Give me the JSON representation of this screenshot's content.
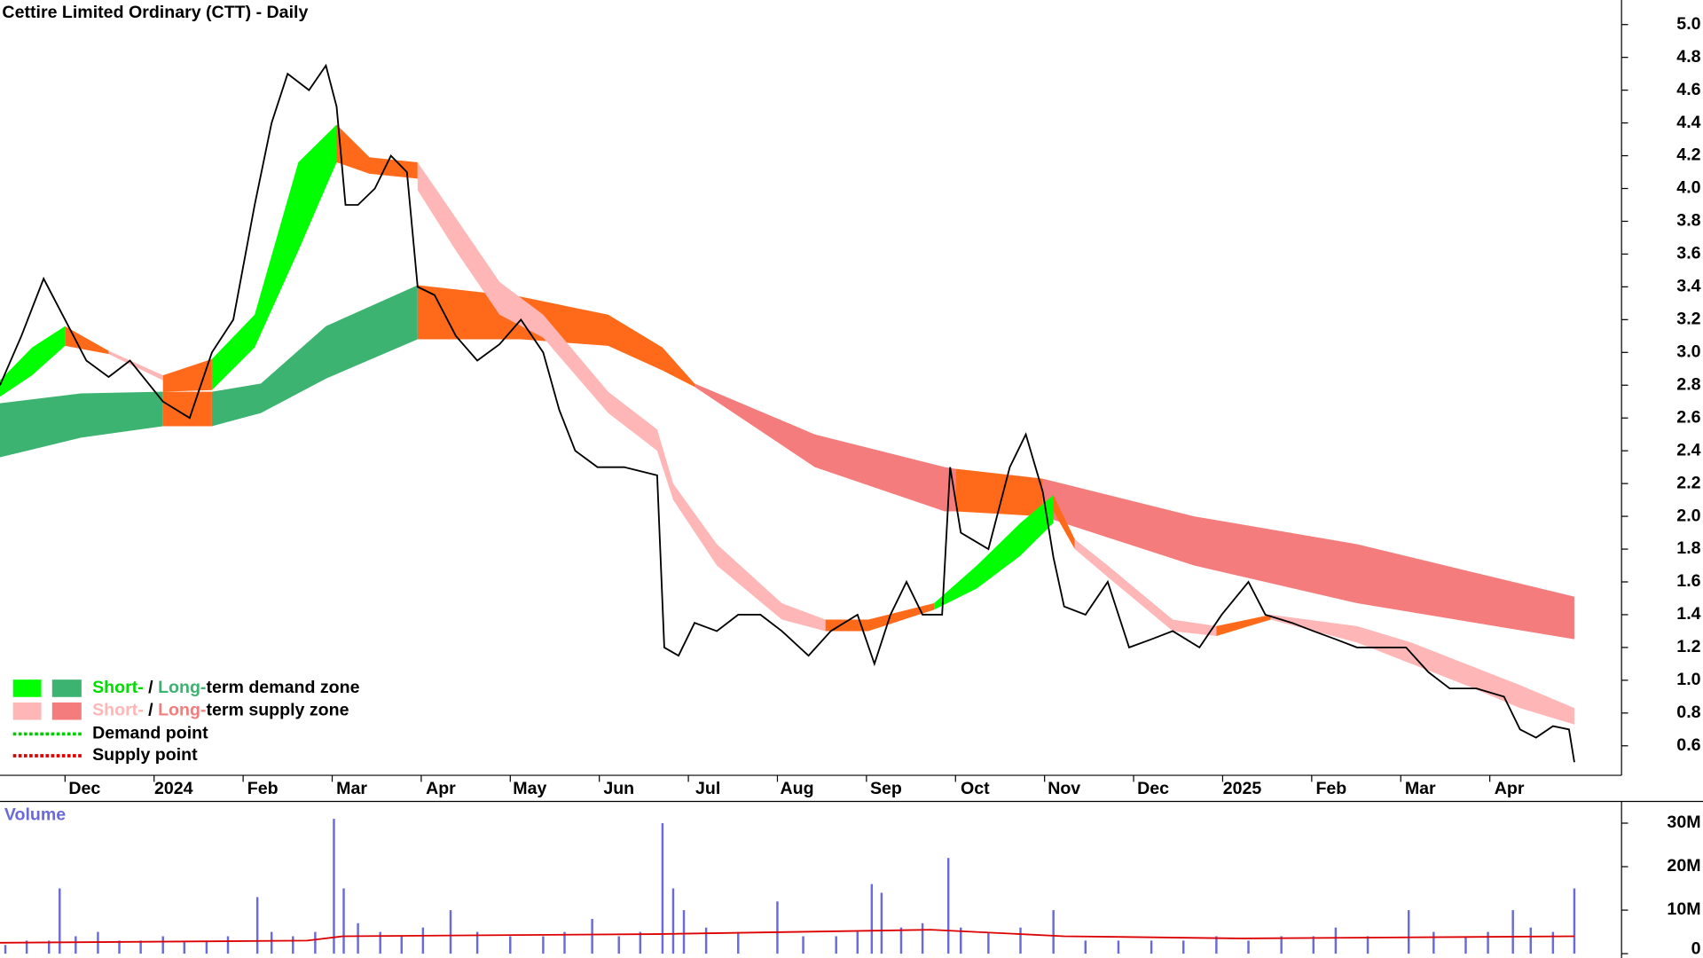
{
  "chart_data": [
    {
      "type": "line",
      "title": "Cettire Limited Ordinary (CTT) - Daily",
      "xlim": [
        0.05,
        18.26
      ],
      "ylim": [
        0.42,
        5.15
      ],
      "xticks": [
        {
          "value": 1,
          "label": "Dec"
        },
        {
          "value": 2,
          "label": "2024"
        },
        {
          "value": 3,
          "label": "Feb"
        },
        {
          "value": 4,
          "label": "Mar"
        },
        {
          "value": 5,
          "label": "Apr"
        },
        {
          "value": 6,
          "label": "May"
        },
        {
          "value": 7,
          "label": "Jun"
        },
        {
          "value": 8,
          "label": "Jul"
        },
        {
          "value": 9,
          "label": "Aug"
        },
        {
          "value": 10,
          "label": "Sep"
        },
        {
          "value": 11,
          "label": "Oct"
        },
        {
          "value": 12,
          "label": "Nov"
        },
        {
          "value": 13,
          "label": "Dec"
        },
        {
          "value": 14,
          "label": "2025"
        },
        {
          "value": 15,
          "label": "Feb"
        },
        {
          "value": 16,
          "label": "Mar"
        },
        {
          "value": 17,
          "label": "Apr"
        }
      ],
      "yticks": [
        0.6,
        0.8,
        {
          "value": 1,
          "label": "1.0"
        },
        1.2,
        1.4,
        1.6,
        1.8,
        {
          "value": 2,
          "label": "2.0"
        },
        2.2,
        2.4,
        2.6,
        2.8,
        {
          "value": 3,
          "label": "3.0"
        },
        3.2,
        3.4,
        3.6,
        3.8,
        {
          "value": 4,
          "label": "4.0"
        },
        4.2,
        4.4,
        4.6,
        4.8,
        {
          "value": 5,
          "label": "5.0"
        }
      ],
      "color": "#000000",
      "x": [
        0.05,
        0.29,
        0.54,
        0.78,
        1.02,
        1.27,
        1.51,
        1.88,
        2.18,
        2.43,
        2.67,
        2.91,
        3.1,
        3.28,
        3.52,
        3.71,
        3.83,
        3.93,
        4.07,
        4.26,
        4.44,
        4.62,
        4.74,
        4.93,
        5.17,
        5.41,
        5.66,
        5.9,
        6.15,
        6.33,
        6.51,
        6.76,
        7.06,
        7.43,
        7.51,
        7.67,
        7.85,
        8.1,
        8.34,
        8.59,
        8.83,
        9.13,
        9.38,
        9.68,
        9.87,
        10.05,
        10.23,
        10.41,
        10.63,
        10.72,
        10.84,
        11.15,
        11.39,
        11.57,
        11.76,
        11.88,
        12,
        12.24,
        12.49,
        12.73,
        12.98,
        13.22,
        13.52,
        13.77,
        14.07,
        14.26,
        14.56,
        14.8,
        15.05,
        15.29,
        15.54,
        15.84,
        16.09,
        16.33,
        16.63,
        16.94,
        17.12,
        17.3,
        17.49,
        17.67,
        17.73
      ],
      "values": [
        2.8,
        3.1,
        3.45,
        3.2,
        2.95,
        2.85,
        2.95,
        2.7,
        2.6,
        3.0,
        3.2,
        3.9,
        4.4,
        4.7,
        4.6,
        4.75,
        4.5,
        3.9,
        3.9,
        4.0,
        4.2,
        4.1,
        3.4,
        3.35,
        3.1,
        2.95,
        3.05,
        3.2,
        3.0,
        2.65,
        2.4,
        2.3,
        2.3,
        2.25,
        1.2,
        1.15,
        1.35,
        1.3,
        1.4,
        1.4,
        1.3,
        1.15,
        1.3,
        1.4,
        1.1,
        1.4,
        1.6,
        1.4,
        1.4,
        2.3,
        1.9,
        1.8,
        2.3,
        2.5,
        2.15,
        1.75,
        1.45,
        1.4,
        1.6,
        1.2,
        1.25,
        1.3,
        1.2,
        1.4,
        1.6,
        1.4,
        1.35,
        1.3,
        1.25,
        1.2,
        1.2,
        1.2,
        1.05,
        0.95,
        0.95,
        0.9,
        0.7,
        0.65,
        0.72,
        0.7,
        0.5
      ],
      "bands": [
        {
          "color": "#3cb371",
          "x": [
            0.05,
            0.96,
            1.88
          ],
          "upper": [
            2.69,
            2.75,
            2.76
          ],
          "lower": [
            2.36,
            2.48,
            2.55
          ]
        },
        {
          "color": "#ff6a1a",
          "x": [
            1.88,
            2.43
          ],
          "upper": [
            2.76,
            2.76
          ],
          "lower": [
            2.55,
            2.55
          ]
        },
        {
          "color": "#3cb371",
          "x": [
            2.43,
            2.98,
            3.71,
            4.74
          ],
          "upper": [
            2.76,
            2.81,
            3.16,
            3.41
          ],
          "lower": [
            2.55,
            2.63,
            2.84,
            3.08
          ]
        },
        {
          "color": "#ff6a1a",
          "x": [
            4.74,
            5.9,
            6.88,
            7.49,
            7.85
          ],
          "upper": [
            3.41,
            3.34,
            3.23,
            3.03,
            2.81
          ],
          "lower": [
            3.08,
            3.08,
            3.04,
            2.89,
            2.79
          ]
        },
        {
          "color": "#f47c7c",
          "x": [
            7.85,
            9.2,
            10.66,
            10.78
          ],
          "upper": [
            2.81,
            2.5,
            2.3,
            2.29
          ],
          "lower": [
            2.79,
            2.3,
            2.03,
            2.03
          ]
        },
        {
          "color": "#ff6a1a",
          "x": [
            10.78,
            11.76
          ],
          "upper": [
            2.29,
            2.23
          ],
          "lower": [
            2.03,
            2.0
          ]
        },
        {
          "color": "#f47c7c",
          "x": [
            11.76,
            13.46,
            15.29,
            17.73
          ],
          "upper": [
            2.23,
            2.0,
            1.83,
            1.51
          ],
          "lower": [
            2.0,
            1.7,
            1.47,
            1.25
          ]
        },
        {
          "color": "#00ff00",
          "x": [
            0.05,
            0.41,
            0.78
          ],
          "upper": [
            2.83,
            3.03,
            3.16
          ],
          "lower": [
            2.73,
            2.86,
            3.04
          ]
        },
        {
          "color": "#ff6a1a",
          "x": [
            0.78,
            1.27
          ],
          "upper": [
            3.16,
            3.01
          ],
          "lower": [
            3.04,
            2.99
          ]
        },
        {
          "color": "#ffb6b6",
          "x": [
            1.27,
            1.88
          ],
          "upper": [
            3.01,
            2.86
          ],
          "lower": [
            2.99,
            2.83
          ]
        },
        {
          "color": "#ff6a1a",
          "x": [
            1.88,
            2.43
          ],
          "upper": [
            2.86,
            2.96
          ],
          "lower": [
            2.76,
            2.77
          ]
        },
        {
          "color": "#00ff00",
          "x": [
            2.43,
            2.91,
            3.4,
            3.83
          ],
          "upper": [
            2.96,
            3.23,
            4.16,
            4.39
          ],
          "lower": [
            2.77,
            3.03,
            3.62,
            4.16
          ]
        },
        {
          "color": "#ff6a1a",
          "x": [
            3.83,
            4.2,
            4.74
          ],
          "upper": [
            4.39,
            4.19,
            4.16
          ],
          "lower": [
            4.16,
            4.09,
            4.06
          ]
        },
        {
          "color": "#ffb6b6",
          "x": [
            4.74,
            5.17,
            5.66,
            6.15,
            6.88,
            7.43,
            7.61,
            8.1,
            8.83,
            9.32
          ],
          "upper": [
            4.16,
            3.82,
            3.43,
            3.23,
            2.76,
            2.53,
            2.2,
            1.83,
            1.47,
            1.37
          ],
          "lower": [
            3.99,
            3.62,
            3.23,
            3.09,
            2.63,
            2.4,
            2.1,
            1.7,
            1.37,
            1.3
          ]
        },
        {
          "color": "#ff6a1a",
          "x": [
            9.32,
            9.8,
            10.54
          ],
          "upper": [
            1.37,
            1.37,
            1.47
          ],
          "lower": [
            1.3,
            1.3,
            1.43
          ]
        },
        {
          "color": "#00ff00",
          "x": [
            10.54,
            11.02,
            11.51,
            11.88
          ],
          "upper": [
            1.47,
            1.7,
            1.96,
            2.13
          ],
          "lower": [
            1.43,
            1.56,
            1.76,
            1.96
          ]
        },
        {
          "color": "#ff6a1a",
          "x": [
            11.88,
            12.12
          ],
          "upper": [
            2.13,
            1.86
          ],
          "lower": [
            2.03,
            1.8
          ]
        },
        {
          "color": "#ffb6b6",
          "x": [
            12.12,
            12.49,
            13.22,
            13.71
          ],
          "upper": [
            1.86,
            1.7,
            1.37,
            1.33
          ],
          "lower": [
            1.8,
            1.63,
            1.3,
            1.27
          ]
        },
        {
          "color": "#ff6a1a",
          "x": [
            13.71,
            14.32
          ],
          "upper": [
            1.33,
            1.4
          ],
          "lower": [
            1.27,
            1.37
          ]
        },
        {
          "color": "#ffb6b6",
          "x": [
            14.32,
            15.29,
            15.9,
            16.51,
            17.12,
            17.73
          ],
          "upper": [
            1.4,
            1.33,
            1.23,
            1.1,
            0.97,
            0.83
          ],
          "lower": [
            1.37,
            1.23,
            1.1,
            0.97,
            0.83,
            0.73
          ]
        }
      ],
      "legend": [
        {
          "short": "Short-",
          "sep": " / ",
          "long": "Long-",
          "rest": "term demand zone",
          "colors": [
            "#00ff00",
            "#3cb371"
          ],
          "text_colors": [
            "#00dd00",
            "#3cb371"
          ]
        },
        {
          "short": "Short-",
          "sep": " / ",
          "long": "Long-",
          "rest": "term supply zone",
          "colors": [
            "#ffb6b6",
            "#f47c7c"
          ],
          "text_colors": [
            "#ffb6b6",
            "#f47c7c"
          ]
        }
      ],
      "points": [
        {
          "label": "Demand point",
          "color": "#00cc00"
        },
        {
          "label": "Supply point",
          "color": "#dd0000"
        }
      ]
    },
    {
      "type": "bar",
      "title": "Volume",
      "color": "#6a6ad8",
      "xlim": [
        0.05,
        18.26
      ],
      "ylim": [
        0,
        34250000
      ],
      "yticks": [
        0,
        {
          "value": 10000000,
          "label": "10M"
        },
        {
          "value": 20000000,
          "label": "20M"
        },
        {
          "value": 30000000,
          "label": "30M"
        }
      ],
      "x": [
        0.11,
        0.35,
        0.6,
        0.72,
        0.9,
        1.15,
        1.39,
        1.63,
        1.88,
        2.12,
        2.37,
        2.61,
        2.94,
        3.1,
        3.34,
        3.59,
        3.8,
        3.91,
        4.07,
        4.32,
        4.56,
        4.8,
        5.11,
        5.41,
        5.78,
        6.15,
        6.39,
        6.7,
        7,
        7.24,
        7.49,
        7.61,
        7.73,
        7.98,
        8.34,
        8.78,
        9.07,
        9.44,
        9.68,
        9.84,
        9.95,
        10.17,
        10.41,
        10.7,
        10.84,
        11.15,
        11.51,
        11.88,
        12.24,
        12.61,
        12.98,
        13.34,
        13.71,
        14.07,
        14.44,
        14.8,
        15.05,
        15.41,
        15.87,
        16.15,
        16.51,
        16.76,
        17.04,
        17.24,
        17.49,
        17.73
      ],
      "values": [
        2000000,
        3000000,
        3000000,
        15000000,
        4000000,
        5000000,
        3000000,
        3000000,
        4000000,
        3000000,
        3000000,
        4000000,
        13000000,
        5000000,
        4000000,
        5000000,
        31000000,
        15000000,
        7000000,
        5000000,
        4000000,
        6000000,
        10000000,
        5000000,
        4000000,
        4000000,
        5000000,
        8000000,
        4000000,
        5000000,
        30000000,
        15000000,
        10000000,
        6000000,
        5000000,
        12000000,
        4000000,
        4000000,
        5000000,
        16000000,
        14000000,
        6000000,
        7000000,
        22000000,
        6000000,
        5000000,
        6000000,
        10000000,
        3000000,
        3000000,
        3000000,
        3000000,
        4000000,
        3000000,
        4000000,
        4000000,
        6000000,
        4000000,
        10000000,
        5000000,
        4000000,
        5000000,
        10000000,
        6000000,
        5000000,
        15000000
      ],
      "ma": {
        "color": "#dd0000",
        "x": [
          0.05,
          3.5,
          3.9,
          7.4,
          9,
          10.5,
          12,
          14,
          17.73
        ],
        "values": [
          2500000,
          3000000,
          4000000,
          4500000,
          5000000,
          5500000,
          4000000,
          3500000,
          4000000
        ]
      }
    }
  ]
}
